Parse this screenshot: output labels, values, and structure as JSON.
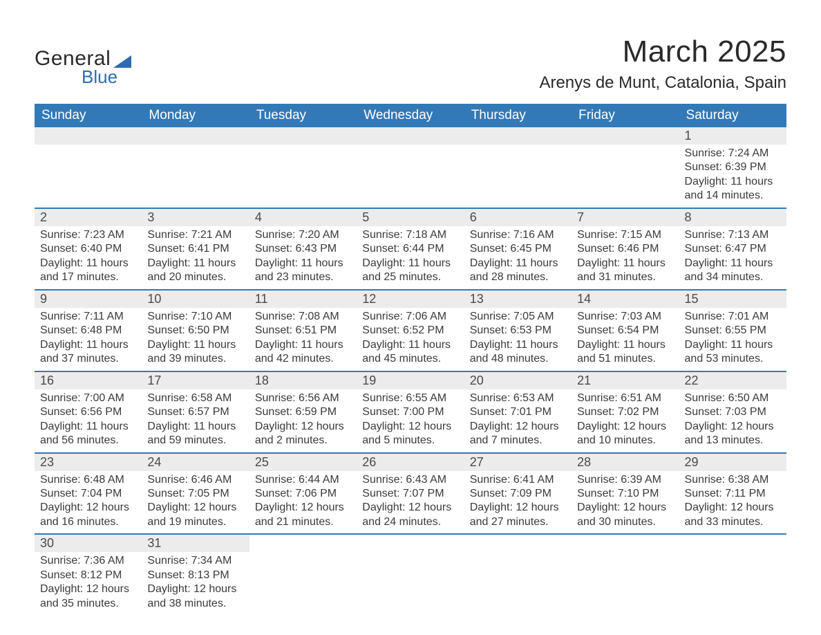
{
  "logo": {
    "text1": "General",
    "text2": "Blue",
    "accent_color": "#2b6db0"
  },
  "title": "March 2025",
  "location": "Arenys de Munt, Catalonia, Spain",
  "colors": {
    "header_bg": "#3379b7",
    "header_text": "#ffffff",
    "daynum_bg": "#ececec",
    "row_border": "#3379b7",
    "body_text": "#3a3a3a"
  },
  "fonts": {
    "title_pt": 44,
    "location_pt": 24,
    "dayhead_pt": 19,
    "daynum_pt": 18,
    "detail_pt": 16
  },
  "day_headers": [
    "Sunday",
    "Monday",
    "Tuesday",
    "Wednesday",
    "Thursday",
    "Friday",
    "Saturday"
  ],
  "weeks": [
    [
      null,
      null,
      null,
      null,
      null,
      null,
      {
        "n": "1",
        "sunrise": "Sunrise: 7:24 AM",
        "sunset": "Sunset: 6:39 PM",
        "day1": "Daylight: 11 hours",
        "day2": "and 14 minutes."
      }
    ],
    [
      {
        "n": "2",
        "sunrise": "Sunrise: 7:23 AM",
        "sunset": "Sunset: 6:40 PM",
        "day1": "Daylight: 11 hours",
        "day2": "and 17 minutes."
      },
      {
        "n": "3",
        "sunrise": "Sunrise: 7:21 AM",
        "sunset": "Sunset: 6:41 PM",
        "day1": "Daylight: 11 hours",
        "day2": "and 20 minutes."
      },
      {
        "n": "4",
        "sunrise": "Sunrise: 7:20 AM",
        "sunset": "Sunset: 6:43 PM",
        "day1": "Daylight: 11 hours",
        "day2": "and 23 minutes."
      },
      {
        "n": "5",
        "sunrise": "Sunrise: 7:18 AM",
        "sunset": "Sunset: 6:44 PM",
        "day1": "Daylight: 11 hours",
        "day2": "and 25 minutes."
      },
      {
        "n": "6",
        "sunrise": "Sunrise: 7:16 AM",
        "sunset": "Sunset: 6:45 PM",
        "day1": "Daylight: 11 hours",
        "day2": "and 28 minutes."
      },
      {
        "n": "7",
        "sunrise": "Sunrise: 7:15 AM",
        "sunset": "Sunset: 6:46 PM",
        "day1": "Daylight: 11 hours",
        "day2": "and 31 minutes."
      },
      {
        "n": "8",
        "sunrise": "Sunrise: 7:13 AM",
        "sunset": "Sunset: 6:47 PM",
        "day1": "Daylight: 11 hours",
        "day2": "and 34 minutes."
      }
    ],
    [
      {
        "n": "9",
        "sunrise": "Sunrise: 7:11 AM",
        "sunset": "Sunset: 6:48 PM",
        "day1": "Daylight: 11 hours",
        "day2": "and 37 minutes."
      },
      {
        "n": "10",
        "sunrise": "Sunrise: 7:10 AM",
        "sunset": "Sunset: 6:50 PM",
        "day1": "Daylight: 11 hours",
        "day2": "and 39 minutes."
      },
      {
        "n": "11",
        "sunrise": "Sunrise: 7:08 AM",
        "sunset": "Sunset: 6:51 PM",
        "day1": "Daylight: 11 hours",
        "day2": "and 42 minutes."
      },
      {
        "n": "12",
        "sunrise": "Sunrise: 7:06 AM",
        "sunset": "Sunset: 6:52 PM",
        "day1": "Daylight: 11 hours",
        "day2": "and 45 minutes."
      },
      {
        "n": "13",
        "sunrise": "Sunrise: 7:05 AM",
        "sunset": "Sunset: 6:53 PM",
        "day1": "Daylight: 11 hours",
        "day2": "and 48 minutes."
      },
      {
        "n": "14",
        "sunrise": "Sunrise: 7:03 AM",
        "sunset": "Sunset: 6:54 PM",
        "day1": "Daylight: 11 hours",
        "day2": "and 51 minutes."
      },
      {
        "n": "15",
        "sunrise": "Sunrise: 7:01 AM",
        "sunset": "Sunset: 6:55 PM",
        "day1": "Daylight: 11 hours",
        "day2": "and 53 minutes."
      }
    ],
    [
      {
        "n": "16",
        "sunrise": "Sunrise: 7:00 AM",
        "sunset": "Sunset: 6:56 PM",
        "day1": "Daylight: 11 hours",
        "day2": "and 56 minutes."
      },
      {
        "n": "17",
        "sunrise": "Sunrise: 6:58 AM",
        "sunset": "Sunset: 6:57 PM",
        "day1": "Daylight: 11 hours",
        "day2": "and 59 minutes."
      },
      {
        "n": "18",
        "sunrise": "Sunrise: 6:56 AM",
        "sunset": "Sunset: 6:59 PM",
        "day1": "Daylight: 12 hours",
        "day2": "and 2 minutes."
      },
      {
        "n": "19",
        "sunrise": "Sunrise: 6:55 AM",
        "sunset": "Sunset: 7:00 PM",
        "day1": "Daylight: 12 hours",
        "day2": "and 5 minutes."
      },
      {
        "n": "20",
        "sunrise": "Sunrise: 6:53 AM",
        "sunset": "Sunset: 7:01 PM",
        "day1": "Daylight: 12 hours",
        "day2": "and 7 minutes."
      },
      {
        "n": "21",
        "sunrise": "Sunrise: 6:51 AM",
        "sunset": "Sunset: 7:02 PM",
        "day1": "Daylight: 12 hours",
        "day2": "and 10 minutes."
      },
      {
        "n": "22",
        "sunrise": "Sunrise: 6:50 AM",
        "sunset": "Sunset: 7:03 PM",
        "day1": "Daylight: 12 hours",
        "day2": "and 13 minutes."
      }
    ],
    [
      {
        "n": "23",
        "sunrise": "Sunrise: 6:48 AM",
        "sunset": "Sunset: 7:04 PM",
        "day1": "Daylight: 12 hours",
        "day2": "and 16 minutes."
      },
      {
        "n": "24",
        "sunrise": "Sunrise: 6:46 AM",
        "sunset": "Sunset: 7:05 PM",
        "day1": "Daylight: 12 hours",
        "day2": "and 19 minutes."
      },
      {
        "n": "25",
        "sunrise": "Sunrise: 6:44 AM",
        "sunset": "Sunset: 7:06 PM",
        "day1": "Daylight: 12 hours",
        "day2": "and 21 minutes."
      },
      {
        "n": "26",
        "sunrise": "Sunrise: 6:43 AM",
        "sunset": "Sunset: 7:07 PM",
        "day1": "Daylight: 12 hours",
        "day2": "and 24 minutes."
      },
      {
        "n": "27",
        "sunrise": "Sunrise: 6:41 AM",
        "sunset": "Sunset: 7:09 PM",
        "day1": "Daylight: 12 hours",
        "day2": "and 27 minutes."
      },
      {
        "n": "28",
        "sunrise": "Sunrise: 6:39 AM",
        "sunset": "Sunset: 7:10 PM",
        "day1": "Daylight: 12 hours",
        "day2": "and 30 minutes."
      },
      {
        "n": "29",
        "sunrise": "Sunrise: 6:38 AM",
        "sunset": "Sunset: 7:11 PM",
        "day1": "Daylight: 12 hours",
        "day2": "and 33 minutes."
      }
    ],
    [
      {
        "n": "30",
        "sunrise": "Sunrise: 7:36 AM",
        "sunset": "Sunset: 8:12 PM",
        "day1": "Daylight: 12 hours",
        "day2": "and 35 minutes."
      },
      {
        "n": "31",
        "sunrise": "Sunrise: 7:34 AM",
        "sunset": "Sunset: 8:13 PM",
        "day1": "Daylight: 12 hours",
        "day2": "and 38 minutes."
      },
      null,
      null,
      null,
      null,
      null
    ]
  ]
}
